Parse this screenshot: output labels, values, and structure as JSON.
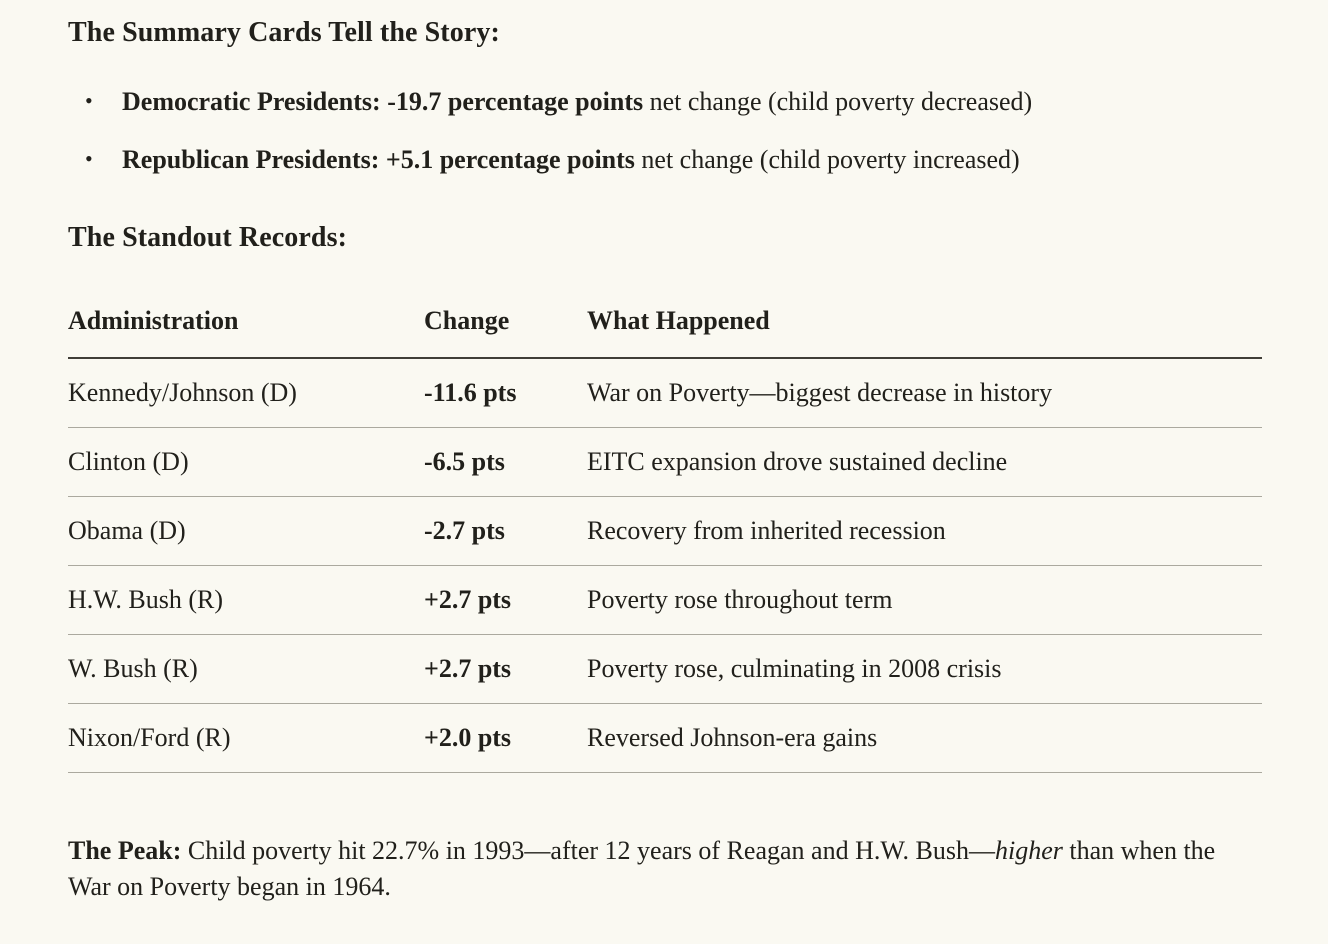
{
  "page": {
    "background_color": "#faf9f2",
    "text_color": "#21201b",
    "header_rule_color": "#403e38",
    "row_rule_color": "#aba99f"
  },
  "summary": {
    "heading": "The Summary Cards Tell the Story:",
    "bullet_glyph": "•",
    "bullets": [
      {
        "bold": "Democratic Presidents: -19.7 percentage points",
        "rest": " net change (child poverty decreased)"
      },
      {
        "bold": "Republican Presidents: +5.1 percentage points",
        "rest": " net change (child poverty increased)"
      }
    ]
  },
  "records": {
    "heading": "The Standout Records:",
    "table": {
      "columns": {
        "administration": "Administration",
        "change": "Change",
        "what_happened": "What Happened"
      },
      "rows": [
        {
          "administration": "Kennedy/Johnson (D)",
          "change": "-11.6 pts",
          "what_happened": "War on Poverty—biggest decrease in history"
        },
        {
          "administration": "Clinton (D)",
          "change": "-6.5 pts",
          "what_happened": "EITC expansion drove sustained decline"
        },
        {
          "administration": "Obama (D)",
          "change": "-2.7 pts",
          "what_happened": "Recovery from inherited recession"
        },
        {
          "administration": "H.W. Bush (R)",
          "change": "+2.7 pts",
          "what_happened": "Poverty rose throughout term"
        },
        {
          "administration": "W. Bush (R)",
          "change": "+2.7 pts",
          "what_happened": "Poverty rose, culminating in 2008 crisis"
        },
        {
          "administration": "Nixon/Ford (R)",
          "change": "+2.0 pts",
          "what_happened": "Reversed Johnson-era gains"
        }
      ]
    }
  },
  "peak": {
    "bold": "The Peak:",
    "before_italic": " Child poverty hit 22.7% in 1993—after 12 years of Reagan and H.W. Bush—",
    "italic": "higher",
    "after_italic": " than when the War on Poverty began in 1964."
  }
}
